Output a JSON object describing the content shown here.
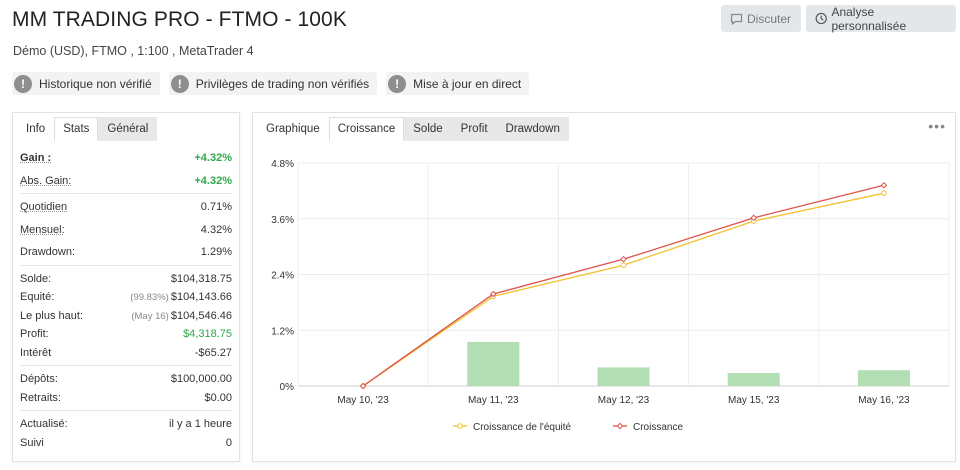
{
  "header": {
    "title": "MM TRADING PRO - FTMO - 100K",
    "subtitle": "Démo (USD), FTMO , 1:100 , MetaTrader 4",
    "discuss_label": "Discuter",
    "analyse_label": "Analyse personnalisée"
  },
  "badges": [
    {
      "icon": "exclamation-icon",
      "label": "Historique non vérifié"
    },
    {
      "icon": "exclamation-icon",
      "label": "Privilèges de trading non vérifiés"
    },
    {
      "icon": "exclamation-icon",
      "label": "Mise à jour en direct"
    }
  ],
  "left_tabs": [
    "Info",
    "Stats",
    "Général"
  ],
  "stats": {
    "gain": {
      "label": "Gain :",
      "value": "+4.32%"
    },
    "abs_gain": {
      "label": "Abs. Gain:",
      "value": "+4.32%"
    },
    "quotidien": {
      "label": "Quotidien",
      "value": "0.71%"
    },
    "mensuel": {
      "label": "Mensuel:",
      "value": "4.32%"
    },
    "drawdown": {
      "label": "Drawdown:",
      "value": "1.29%"
    },
    "solde": {
      "label": "Solde:",
      "value": "$104,318.75"
    },
    "equite": {
      "label": "Equité:",
      "pre": "(99.83%)",
      "value": "$104,143.66"
    },
    "plus_haut": {
      "label": "Le plus haut:",
      "pre": "(May 16)",
      "value": "$104,546.46"
    },
    "profit": {
      "label": "Profit:",
      "value": "$4,318.75"
    },
    "interet": {
      "label": "Intérêt",
      "value": "-$65.27"
    },
    "depots": {
      "label": "Dépôts:",
      "value": "$100,000.00"
    },
    "retraits": {
      "label": "Retraits:",
      "value": "$0.00"
    },
    "actualise": {
      "label": "Actualisé:",
      "value": "il y a 1 heure"
    },
    "suivi": {
      "label": "Suivi",
      "value": "0"
    }
  },
  "chart_tabs": [
    "Graphique",
    "Croissance",
    "Solde",
    "Profit",
    "Drawdown"
  ],
  "more_icon": "ellipsis-icon",
  "colors": {
    "croissance": "#e0524a",
    "equite": "#f2c12e",
    "bars": "#b3deb3",
    "profit_green": "#2da84a"
  },
  "chart_data": {
    "type": "line",
    "categories": [
      "May 10, '23",
      "May 11, '23",
      "May 12, '23",
      "May 15, '23",
      "May 16, '23"
    ],
    "series": [
      {
        "name": "Croissance de l'équité",
        "type": "line",
        "values": [
          0,
          1.93,
          2.6,
          3.55,
          4.15
        ]
      },
      {
        "name": "Croissance",
        "type": "line",
        "values": [
          0,
          1.98,
          2.73,
          3.62,
          4.32
        ]
      },
      {
        "type": "bar",
        "values": [
          0,
          0.95,
          0.4,
          0.28,
          0.34
        ]
      }
    ],
    "y_ticks": [
      "0%",
      "1.2%",
      "2.4%",
      "3.6%",
      "4.8%"
    ],
    "ylim": [
      0,
      4.8
    ],
    "grid": true,
    "legend_position": "bottom"
  }
}
